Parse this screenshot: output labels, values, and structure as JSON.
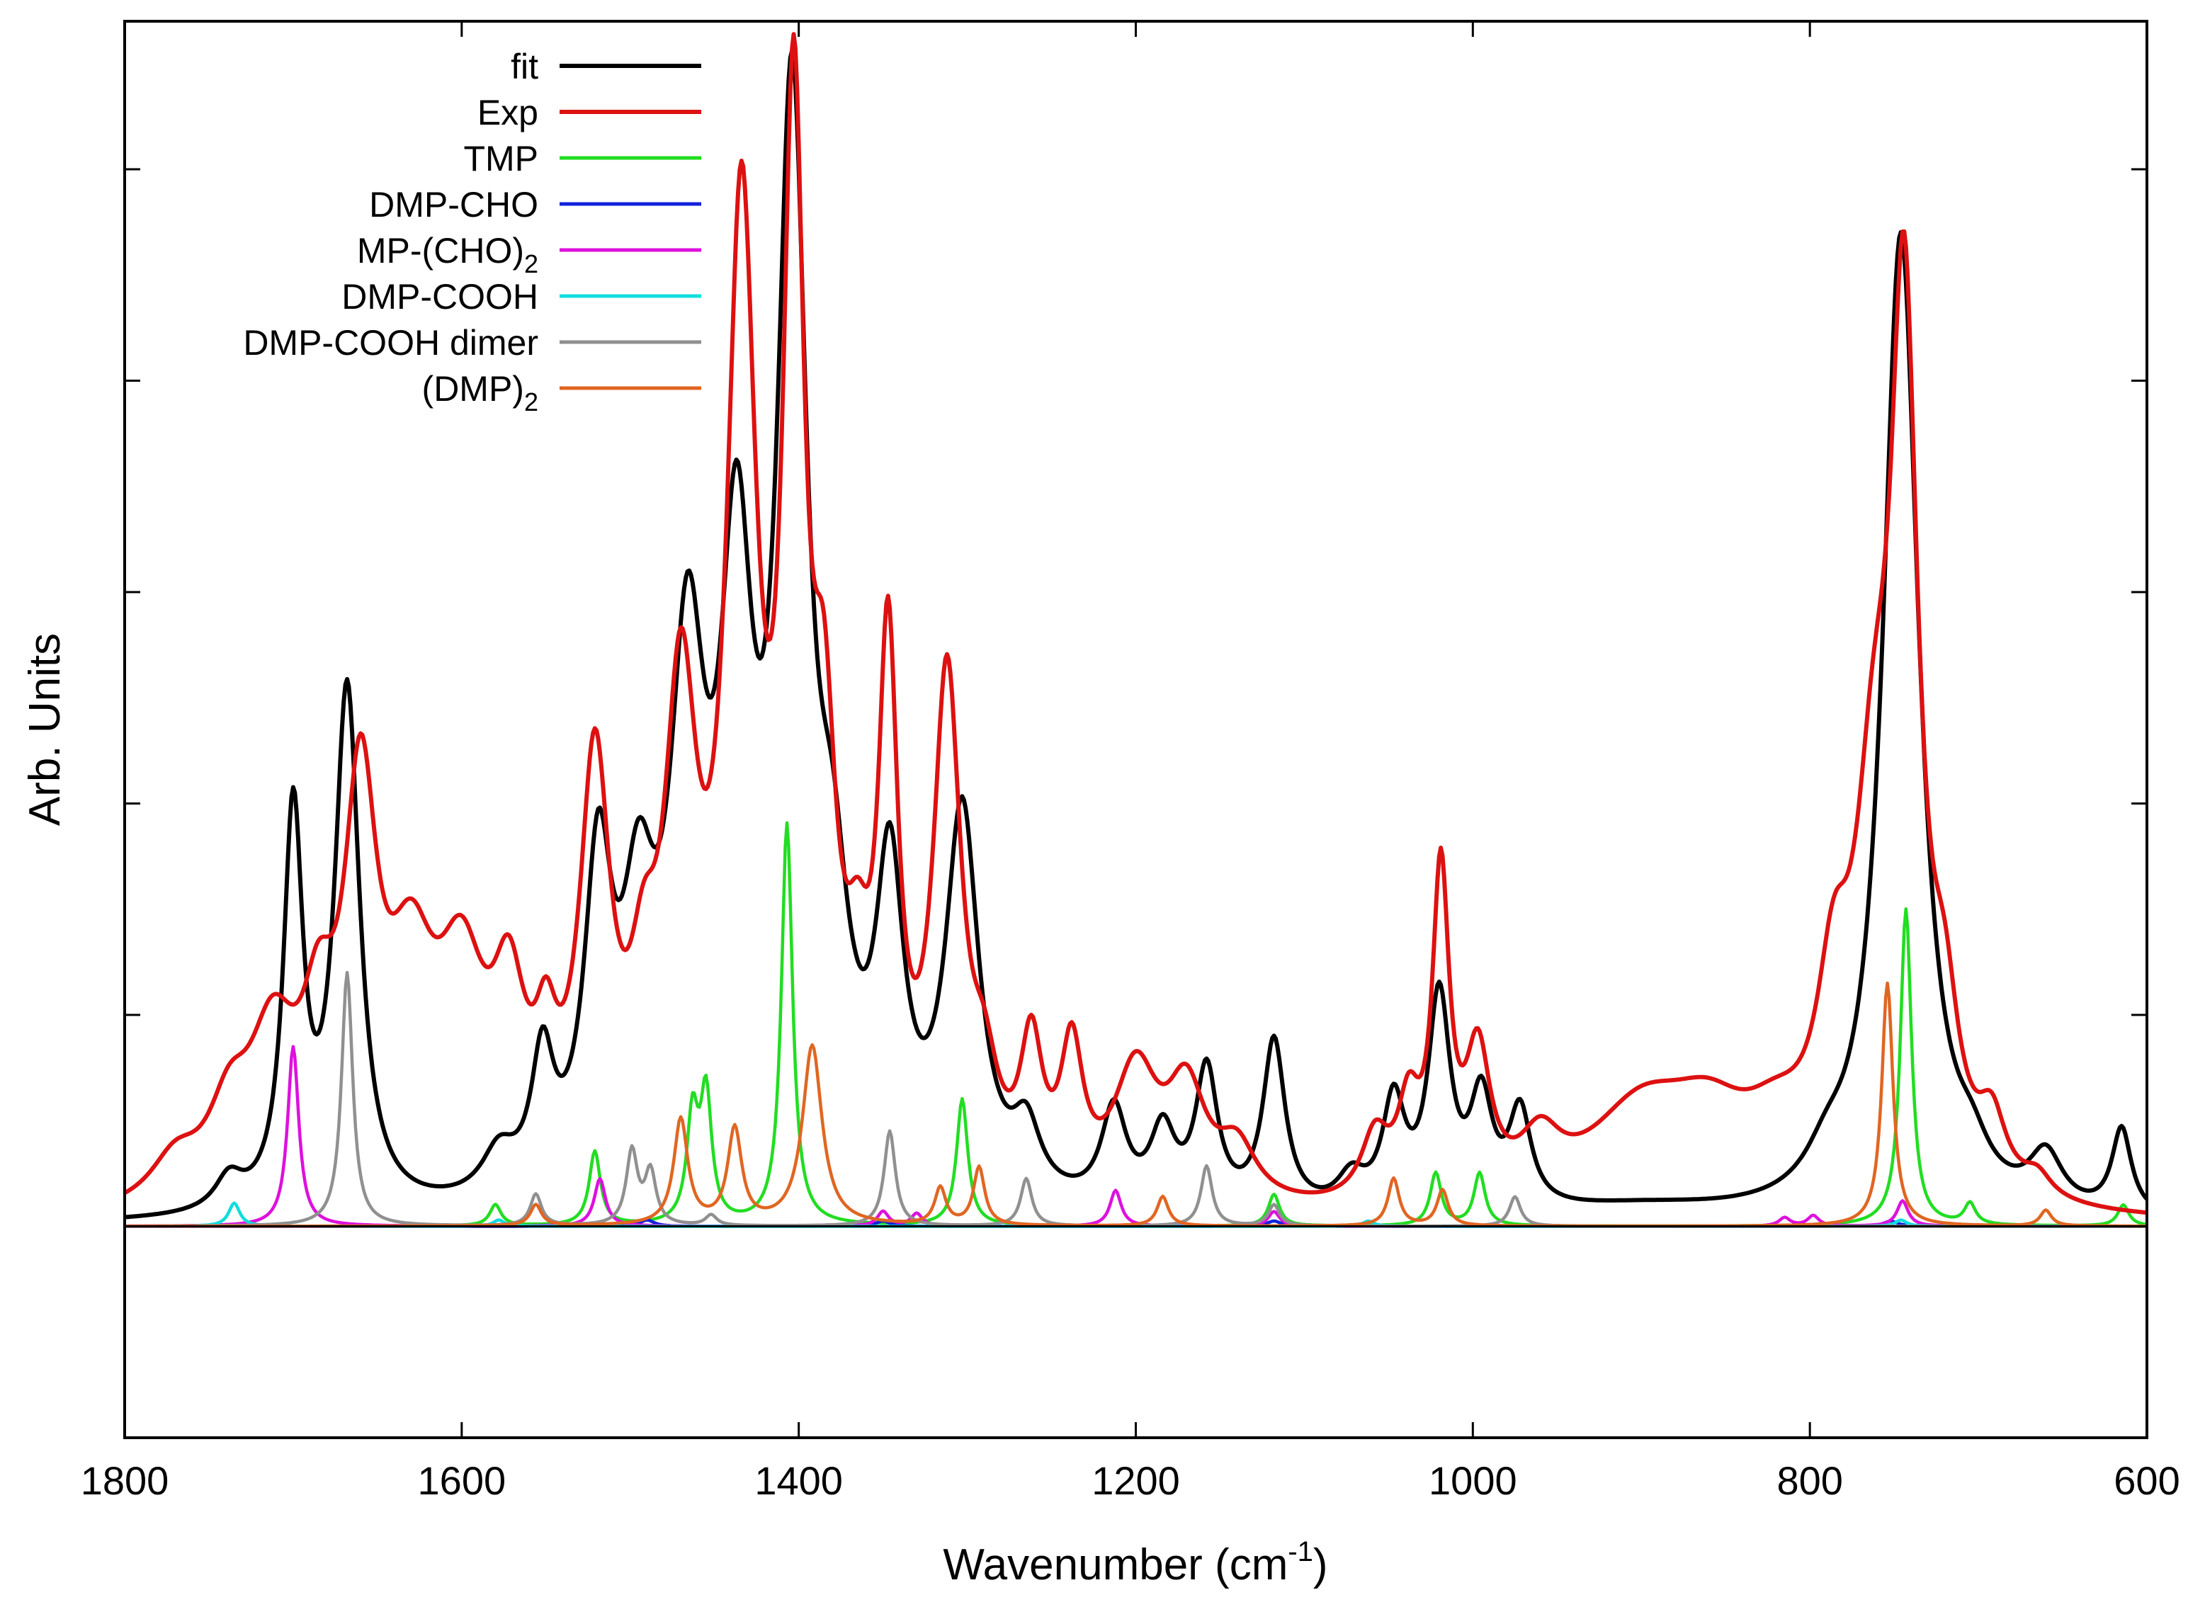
{
  "chart_data": {
    "type": "line",
    "title": "",
    "xlabel": "Wavenumber (cm",
    "xlabel_sup": "-1",
    "xlabel_end": ")",
    "ylabel": "Arb. Units",
    "xlim": [
      1800,
      600
    ],
    "ylim": [
      -0.2,
      1.14
    ],
    "x_ticks": [
      1800,
      1600,
      1400,
      1200,
      1000,
      800,
      600
    ],
    "x_tick_labels": [
      "1800",
      "1600",
      "1400",
      "1200",
      "1000",
      "800",
      "600"
    ],
    "y_ticks": [
      0.2,
      0.4,
      0.6,
      0.8,
      1.0
    ],
    "grid": false,
    "legend_position": "top-left",
    "series": [
      {
        "name": "fit",
        "label": "fit",
        "color": "#000000",
        "peaks": [
          {
            "c": 1738,
            "h": 0.03,
            "w": 10
          },
          {
            "c": 1700,
            "h": 0.37,
            "w": 7
          },
          {
            "c": 1668,
            "h": 0.49,
            "w": 9
          },
          {
            "c": 1578,
            "h": 0.04,
            "w": 12
          },
          {
            "c": 1552,
            "h": 0.12,
            "w": 8
          },
          {
            "c": 1519,
            "h": 0.29,
            "w": 10
          },
          {
            "c": 1495,
            "h": 0.22,
            "w": 12
          },
          {
            "c": 1466,
            "h": 0.46,
            "w": 13
          },
          {
            "c": 1437,
            "h": 0.52,
            "w": 12
          },
          {
            "c": 1404,
            "h": 0.97,
            "w": 11
          },
          {
            "c": 1380,
            "h": 0.2,
            "w": 12
          },
          {
            "c": 1346,
            "h": 0.28,
            "w": 10
          },
          {
            "c": 1303,
            "h": 0.36,
            "w": 12
          },
          {
            "c": 1265,
            "h": 0.06,
            "w": 10
          },
          {
            "c": 1213,
            "h": 0.09,
            "w": 9
          },
          {
            "c": 1184,
            "h": 0.07,
            "w": 9
          },
          {
            "c": 1158,
            "h": 0.13,
            "w": 8
          },
          {
            "c": 1118,
            "h": 0.16,
            "w": 8
          },
          {
            "c": 1072,
            "h": 0.03,
            "w": 10
          },
          {
            "c": 1047,
            "h": 0.1,
            "w": 8
          },
          {
            "c": 1020,
            "h": 0.2,
            "w": 8
          },
          {
            "c": 995,
            "h": 0.1,
            "w": 8
          },
          {
            "c": 972,
            "h": 0.09,
            "w": 8
          },
          {
            "c": 900,
            "h": 0.012,
            "w": 70
          },
          {
            "c": 790,
            "h": 0.03,
            "w": 15
          },
          {
            "c": 746,
            "h": 0.93,
            "w": 13
          },
          {
            "c": 704,
            "h": 0.03,
            "w": 12
          },
          {
            "c": 660,
            "h": 0.05,
            "w": 12
          },
          {
            "c": 615,
            "h": 0.08,
            "w": 7
          }
        ]
      },
      {
        "name": "Exp",
        "label": "Exp",
        "color": "#dd1111",
        "peaks": [
          {
            "c": 1770,
            "h": 0.04,
            "w": 18
          },
          {
            "c": 1738,
            "h": 0.07,
            "w": 15
          },
          {
            "c": 1712,
            "h": 0.14,
            "w": 18
          },
          {
            "c": 1685,
            "h": 0.12,
            "w": 12
          },
          {
            "c": 1660,
            "h": 0.35,
            "w": 12
          },
          {
            "c": 1630,
            "h": 0.18,
            "w": 18
          },
          {
            "c": 1600,
            "h": 0.18,
            "w": 18
          },
          {
            "c": 1572,
            "h": 0.15,
            "w": 12
          },
          {
            "c": 1550,
            "h": 0.09,
            "w": 8
          },
          {
            "c": 1521,
            "h": 0.38,
            "w": 11
          },
          {
            "c": 1492,
            "h": 0.12,
            "w": 10
          },
          {
            "c": 1470,
            "h": 0.42,
            "w": 12
          },
          {
            "c": 1434,
            "h": 0.87,
            "w": 11
          },
          {
            "c": 1403,
            "h": 0.92,
            "w": 8
          },
          {
            "c": 1385,
            "h": 0.32,
            "w": 9
          },
          {
            "c": 1365,
            "h": 0.12,
            "w": 9
          },
          {
            "c": 1347,
            "h": 0.47,
            "w": 7
          },
          {
            "c": 1312,
            "h": 0.47,
            "w": 10
          },
          {
            "c": 1290,
            "h": 0.08,
            "w": 10
          },
          {
            "c": 1262,
            "h": 0.13,
            "w": 8
          },
          {
            "c": 1238,
            "h": 0.13,
            "w": 8
          },
          {
            "c": 1200,
            "h": 0.12,
            "w": 16
          },
          {
            "c": 1170,
            "h": 0.1,
            "w": 14
          },
          {
            "c": 1140,
            "h": 0.05,
            "w": 14
          },
          {
            "c": 1058,
            "h": 0.06,
            "w": 10
          },
          {
            "c": 1038,
            "h": 0.08,
            "w": 8
          },
          {
            "c": 1019,
            "h": 0.3,
            "w": 6
          },
          {
            "c": 997,
            "h": 0.13,
            "w": 9
          },
          {
            "c": 960,
            "h": 0.05,
            "w": 15
          },
          {
            "c": 900,
            "h": 0.09,
            "w": 40
          },
          {
            "c": 860,
            "h": 0.06,
            "w": 30
          },
          {
            "c": 820,
            "h": 0.05,
            "w": 25
          },
          {
            "c": 786,
            "h": 0.15,
            "w": 12
          },
          {
            "c": 762,
            "h": 0.3,
            "w": 14
          },
          {
            "c": 744,
            "h": 0.78,
            "w": 10
          },
          {
            "c": 720,
            "h": 0.12,
            "w": 10
          },
          {
            "c": 692,
            "h": 0.06,
            "w": 10
          },
          {
            "c": 665,
            "h": 0.02,
            "w": 10
          }
        ]
      },
      {
        "name": "TMP",
        "label": "TMP",
        "color": "#22dd22",
        "peaks": [
          {
            "c": 1580,
            "h": 0.02,
            "w": 4
          },
          {
            "c": 1521,
            "h": 0.07,
            "w": 4
          },
          {
            "c": 1463,
            "h": 0.1,
            "w": 4
          },
          {
            "c": 1455,
            "h": 0.12,
            "w": 4
          },
          {
            "c": 1407,
            "h": 0.38,
            "w": 4
          },
          {
            "c": 1303,
            "h": 0.12,
            "w": 4
          },
          {
            "c": 1118,
            "h": 0.03,
            "w": 4
          },
          {
            "c": 1022,
            "h": 0.05,
            "w": 4
          },
          {
            "c": 996,
            "h": 0.05,
            "w": 4
          },
          {
            "c": 743,
            "h": 0.3,
            "w": 4
          },
          {
            "c": 705,
            "h": 0.02,
            "w": 4
          },
          {
            "c": 614,
            "h": 0.02,
            "w": 4
          }
        ]
      },
      {
        "name": "DMP-CHO",
        "label": "DMP-CHO",
        "color": "#1122dd",
        "peaks": [
          {
            "c": 1490,
            "h": 0.006,
            "w": 5
          },
          {
            "c": 1350,
            "h": 0.005,
            "w": 5
          },
          {
            "c": 1118,
            "h": 0.005,
            "w": 5
          },
          {
            "c": 752,
            "h": 0.005,
            "w": 5
          }
        ]
      },
      {
        "name": "MP-(CHO)2",
        "label": "MP-(CHO)",
        "label_sub": "2",
        "color": "#dd11dd",
        "peaks": [
          {
            "c": 1700,
            "h": 0.17,
            "w": 4
          },
          {
            "c": 1518,
            "h": 0.045,
            "w": 4
          },
          {
            "c": 1350,
            "h": 0.014,
            "w": 4
          },
          {
            "c": 1330,
            "h": 0.012,
            "w": 4
          },
          {
            "c": 1212,
            "h": 0.034,
            "w": 4
          },
          {
            "c": 1118,
            "h": 0.014,
            "w": 4
          },
          {
            "c": 815,
            "h": 0.008,
            "w": 4
          },
          {
            "c": 798,
            "h": 0.01,
            "w": 4
          },
          {
            "c": 745,
            "h": 0.024,
            "w": 4
          }
        ]
      },
      {
        "name": "DMP-COOH",
        "label": "DMP-COOH",
        "color": "#11dddd",
        "peaks": [
          {
            "c": 1735,
            "h": 0.022,
            "w": 4
          },
          {
            "c": 1578,
            "h": 0.006,
            "w": 4
          },
          {
            "c": 1062,
            "h": 0.005,
            "w": 4
          },
          {
            "c": 746,
            "h": 0.006,
            "w": 4
          }
        ]
      },
      {
        "name": "DMP-COOH dimer",
        "label": "DMP-COOH dimer",
        "color": "#909090",
        "peaks": [
          {
            "c": 1668,
            "h": 0.24,
            "w": 4
          },
          {
            "c": 1556,
            "h": 0.03,
            "w": 4
          },
          {
            "c": 1499,
            "h": 0.07,
            "w": 4
          },
          {
            "c": 1488,
            "h": 0.05,
            "w": 4
          },
          {
            "c": 1452,
            "h": 0.01,
            "w": 4
          },
          {
            "c": 1346,
            "h": 0.09,
            "w": 4
          },
          {
            "c": 1265,
            "h": 0.045,
            "w": 4
          },
          {
            "c": 1158,
            "h": 0.057,
            "w": 4
          },
          {
            "c": 1118,
            "h": 0.02,
            "w": 4
          },
          {
            "c": 975,
            "h": 0.028,
            "w": 4
          }
        ]
      },
      {
        "name": "(DMP)2",
        "label": "(DMP)",
        "label_sub": "2",
        "color": "#e06622",
        "peaks": [
          {
            "c": 1556,
            "h": 0.02,
            "w": 4
          },
          {
            "c": 1470,
            "h": 0.1,
            "w": 5
          },
          {
            "c": 1438,
            "h": 0.09,
            "w": 5
          },
          {
            "c": 1392,
            "h": 0.17,
            "w": 7
          },
          {
            "c": 1316,
            "h": 0.035,
            "w": 4
          },
          {
            "c": 1293,
            "h": 0.055,
            "w": 4
          },
          {
            "c": 1184,
            "h": 0.028,
            "w": 4
          },
          {
            "c": 1047,
            "h": 0.045,
            "w": 4
          },
          {
            "c": 1018,
            "h": 0.034,
            "w": 4
          },
          {
            "c": 754,
            "h": 0.23,
            "w": 4
          },
          {
            "c": 660,
            "h": 0.015,
            "w": 4
          }
        ]
      }
    ]
  }
}
